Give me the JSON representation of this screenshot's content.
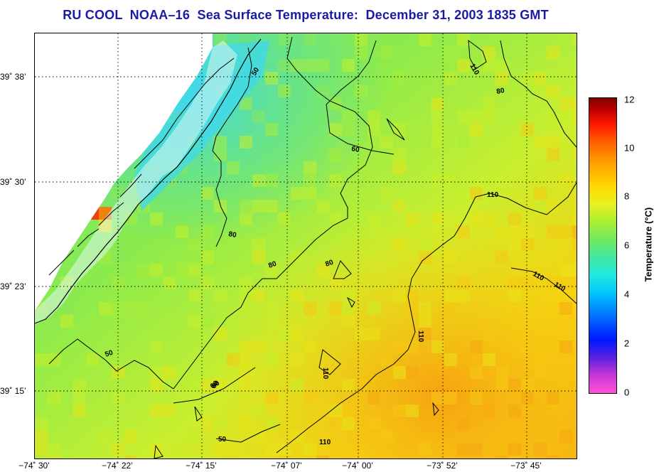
{
  "title": "RU COOL  NOAA–16  Sea Surface Temperature:  December 31, 2003 1835 GMT",
  "longitude_ticks": [
    "−74˚ 30’",
    "−74˚ 22’",
    "−74˚ 15’",
    "−74˚ 07’",
    "−74˚ 00’",
    "−73˚ 52’",
    "−73˚ 45’"
  ],
  "latitude_ticks": [
    "39˚ 38’",
    "39˚ 30’",
    "39˚ 23’",
    "39˚ 15’"
  ],
  "colorbar": {
    "label": "Temperature (°C)",
    "ticks": [
      "12",
      "10",
      "8",
      "6",
      "4",
      "2",
      "0"
    ],
    "range": [
      0,
      12
    ]
  },
  "contours": {
    "labels": [
      "50",
      "60",
      "110",
      "80",
      "50",
      "80",
      "50",
      "60",
      "110",
      "110",
      "110",
      "80",
      "110",
      "110",
      "80",
      "80",
      "110"
    ]
  }
}
